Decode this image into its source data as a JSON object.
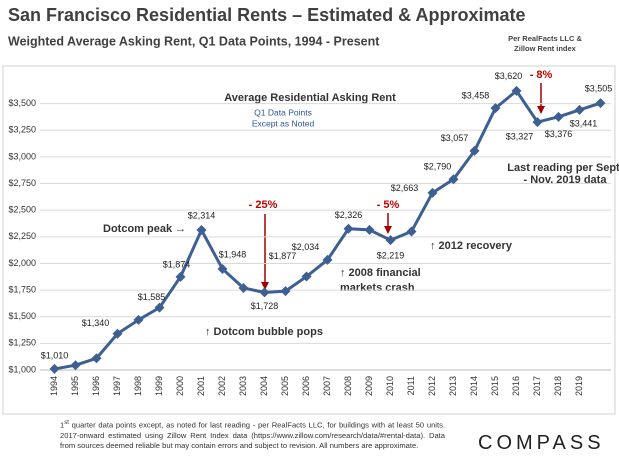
{
  "chart_data": {
    "type": "line",
    "title": "San Francisco Residential Rents – Estimated & Approximate",
    "subtitle": "Weighted Average Asking Rent, Q1 Data Points,  1994 - Present",
    "source": [
      "Per RealFacts  LLC &",
      "Zillow Rent index"
    ],
    "categories": [
      "1994",
      "1995",
      "1996",
      "1997",
      "1998",
      "1999",
      "2000",
      "2001",
      "2002",
      "2003",
      "2004",
      "2005",
      "2006",
      "2007",
      "2008",
      "2009",
      "2010",
      "2011",
      "2012",
      "2013",
      "2014",
      "2015",
      "2016",
      "2017",
      "2018",
      "2019",
      null
    ],
    "values": [
      1010,
      1045,
      1110,
      1340,
      1470,
      1585,
      1874,
      2314,
      1948,
      1770,
      1728,
      1740,
      1877,
      2034,
      2326,
      2315,
      2219,
      2300,
      2663,
      2790,
      3057,
      3458,
      3620,
      3327,
      3376,
      3441,
      3505
    ],
    "value_labels": [
      "$1,010",
      null,
      null,
      "$1,340",
      null,
      "$1,585",
      "$1,874",
      "$2,314",
      "$1,948",
      null,
      "$1,728",
      null,
      "$1,877",
      "$2,034",
      "$2,326",
      null,
      "$2,219",
      null,
      "$2,663",
      "$2,790",
      "$3,057",
      "$3,458",
      "$3,620",
      "$3,327",
      "$3,376",
      "$3,441",
      "$3,505"
    ],
    "color": "#3d5f91",
    "ylim": [
      1000,
      3750
    ],
    "yticks": [
      {
        "value": 1000,
        "label": "$1,000"
      },
      {
        "value": 1250,
        "label": "$1,250"
      },
      {
        "value": 1500,
        "label": "$1,500"
      },
      {
        "value": 1750,
        "label": "$1,750"
      },
      {
        "value": 2000,
        "label": "$2,000"
      },
      {
        "value": 2250,
        "label": "$2,250"
      },
      {
        "value": 2500,
        "label": "$2,500"
      },
      {
        "value": 2750,
        "label": "$2,750"
      },
      {
        "value": 3000,
        "label": "$3,000"
      },
      {
        "value": 3250,
        "label": "$3,250"
      },
      {
        "value": 3500,
        "label": "$3,500"
      }
    ],
    "grid": true,
    "annotations": [
      "Average Residential Asking Rent",
      "Q1 Data Points",
      "Except as Noted",
      "Dotcom peak →",
      "- 25%",
      "- 5%",
      "- 8%",
      "↑ Dotcom bubble pops",
      "↑ 2008 financial",
      "markets crash",
      "↑ 2012 recovery",
      "Last reading per Sept.",
      "- Nov. 2019 data"
    ]
  },
  "footnote": {
    "lead": "1",
    "sup": "st",
    "text": " quarter data points except, as noted for last reading - per RealFacts LLC, for buildings with at least 50 units. 2017-onward estimated using Zillow Rent Index data (https://www.zillow.com/research/data/#rental-data). Data from sources deemed reliable but may contain errors and subject to revision. All numbers are approximate."
  },
  "brand": "COMPASS"
}
